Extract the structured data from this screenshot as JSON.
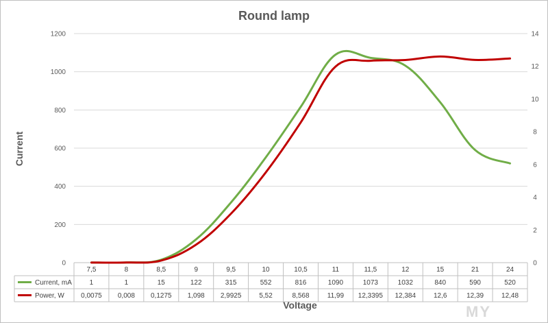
{
  "chart_data": {
    "type": "line",
    "title": "Round lamp",
    "xlabel": "Voltage",
    "ylabel": "Current",
    "categories": [
      "7,5",
      "8",
      "8,5",
      "9",
      "9,5",
      "10",
      "10,5",
      "11",
      "11,5",
      "12",
      "15",
      "21",
      "24"
    ],
    "ylim": [
      0,
      1200
    ],
    "y_ticks": [
      "0",
      "200",
      "400",
      "600",
      "800",
      "1000",
      "1200"
    ],
    "y2lim": [
      0,
      14
    ],
    "y2_ticks": [
      "0",
      "2",
      "4",
      "6",
      "8",
      "10",
      "12",
      "14"
    ],
    "grid": true,
    "legend": "data-table",
    "series": [
      {
        "name": "Current, mA",
        "axis": "left",
        "color": "#70ad47",
        "values": [
          1,
          1,
          15,
          122,
          315,
          552,
          816,
          1090,
          1073,
          1032,
          840,
          590,
          520
        ],
        "labels": [
          "1",
          "1",
          "15",
          "122",
          "315",
          "552",
          "816",
          "1090",
          "1073",
          "1032",
          "840",
          "590",
          "520"
        ]
      },
      {
        "name": "Power, W",
        "axis": "right",
        "color": "#c00000",
        "values": [
          0.0075,
          0.008,
          0.1275,
          1.098,
          2.9925,
          5.52,
          8.568,
          11.99,
          12.3395,
          12.384,
          12.6,
          12.39,
          12.48
        ],
        "labels": [
          "0,0075",
          "0,008",
          "0,1275",
          "1,098",
          "2,9925",
          "5,52",
          "8,568",
          "11,99",
          "12,3395",
          "12,384",
          "12,6",
          "12,39",
          "12,48"
        ]
      }
    ],
    "watermark": "MY"
  }
}
